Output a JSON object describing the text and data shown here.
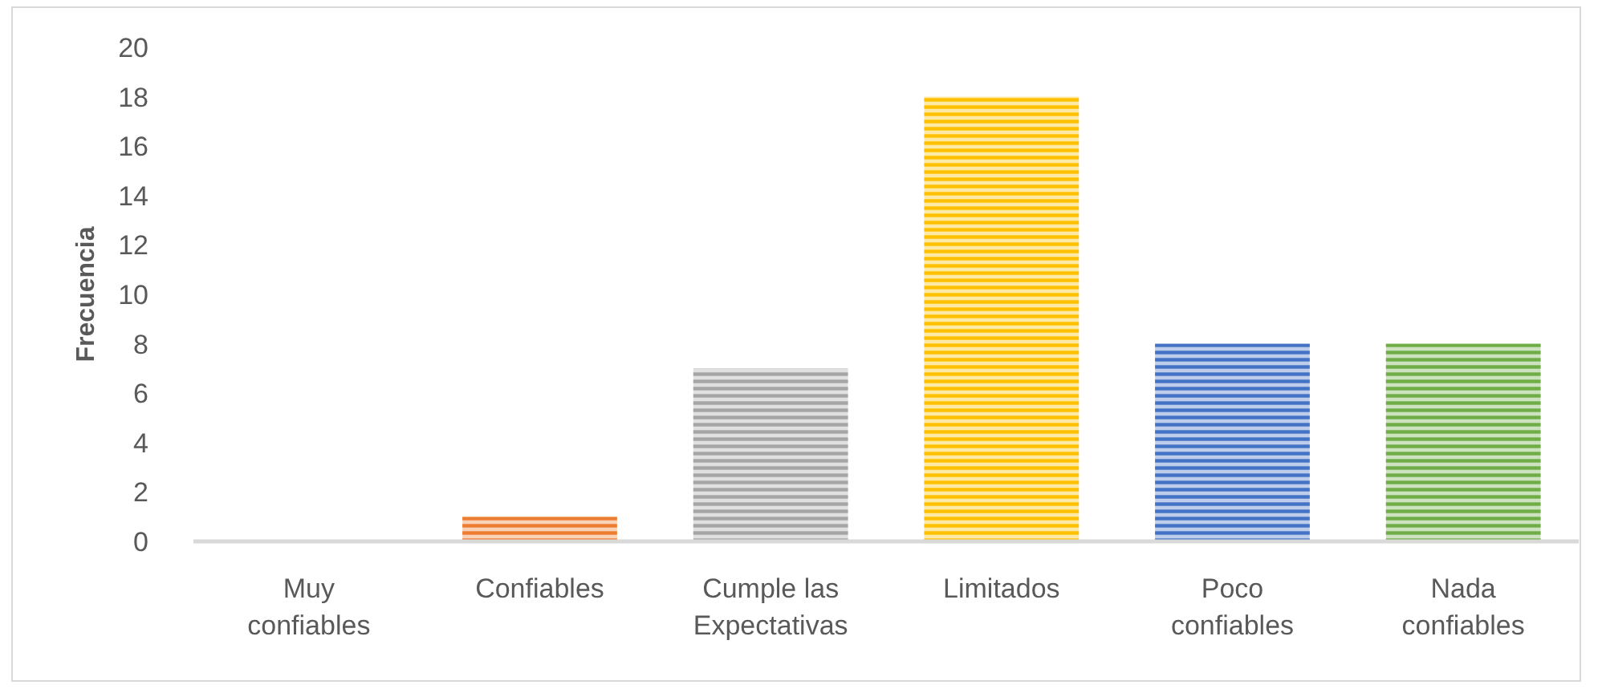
{
  "chart_data": {
    "type": "bar",
    "ylabel": "Frecuencia",
    "categories": [
      "Muy confiables",
      "Confiables",
      "Cumple las Expectativas",
      "Limitados",
      "Poco confiables",
      "Nada confiables"
    ],
    "values": [
      0,
      1,
      7,
      18,
      8,
      8
    ],
    "colors": [
      "#4472c4",
      "#ed7d31",
      "#a5a5a5",
      "#ffc000",
      "#4472c4",
      "#70ad47"
    ],
    "ylim": [
      0,
      20
    ],
    "yticks": [
      0,
      2,
      4,
      6,
      8,
      10,
      12,
      14,
      16,
      18,
      20
    ]
  }
}
